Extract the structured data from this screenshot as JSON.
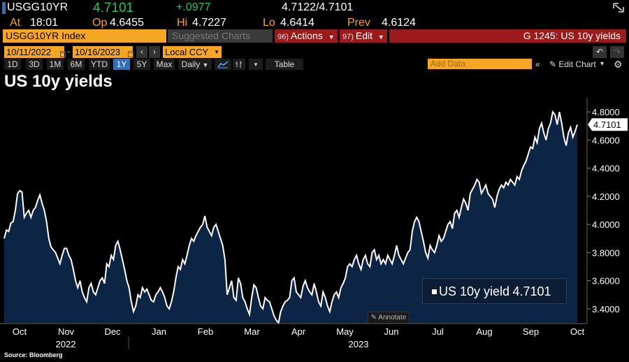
{
  "quote": {
    "ticker": "USGG10YR",
    "last": "4.7101",
    "change": "+.0977",
    "bid_ask": "4.7122/4.7101",
    "at_label": "At",
    "time": "18:01",
    "op_label": "Op",
    "op": "4.6455",
    "hi_label": "Hi",
    "hi": "4.7227",
    "lo_label": "Lo",
    "lo": "4.6414",
    "prev_label": "Prev",
    "prev": "4.6124"
  },
  "command_bar": {
    "security": "USGG10YR Index",
    "suggested": "Suggested Charts",
    "actions_num": "96)",
    "actions": "Actions",
    "edit_num": "97)",
    "edit": "Edit",
    "page_info": "G 1245: US 10y yields"
  },
  "dates": {
    "start": "10/11/2022",
    "end": "10/16/2023",
    "currency": "Local CCY"
  },
  "ranges": {
    "items": [
      "1D",
      "3D",
      "1M",
      "6M",
      "YTD",
      "1Y",
      "5Y",
      "Max"
    ],
    "active": "1Y",
    "frequency": "Daily",
    "table": "Table",
    "add_data_placeholder": "Add Data",
    "edit_chart": "Edit Chart"
  },
  "chart_title": "US 10y yields",
  "annotate_label": "Annotate",
  "source": "Source: Bloomberg",
  "colors": {
    "orange": "#f5a623",
    "green": "#22c55e",
    "area_fill": "#0d2545",
    "line": "#ffffff",
    "action_red": "#9b1b1b"
  },
  "chart_data": {
    "type": "area",
    "title": "US 10y yields",
    "series": [
      {
        "name": "US 10y yield",
        "last_label": "4.7101",
        "values": [
          3.9,
          3.96,
          3.95,
          4.01,
          4.02,
          4.1,
          4.22,
          4.24,
          4.23,
          4.05,
          4.08,
          4.1,
          4.05,
          4.1,
          4.12,
          4.17,
          4.21,
          4.15,
          4.1,
          4.02,
          3.9,
          3.84,
          3.82,
          3.8,
          3.76,
          3.72,
          3.78,
          3.83,
          3.83,
          3.78,
          3.75,
          3.68,
          3.6,
          3.55,
          3.6,
          3.52,
          3.48,
          3.45,
          3.55,
          3.58,
          3.52,
          3.5,
          3.55,
          3.6,
          3.62,
          3.58,
          3.72,
          3.7,
          3.78,
          3.75,
          3.85,
          3.88,
          3.82,
          3.75,
          3.68,
          3.6,
          3.55,
          3.45,
          3.38,
          3.42,
          3.5,
          3.48,
          3.55,
          3.52,
          3.54,
          3.5,
          3.46,
          3.45,
          3.5,
          3.52,
          3.55,
          3.52,
          3.48,
          3.42,
          3.4,
          3.45,
          3.52,
          3.62,
          3.7,
          3.68,
          3.75,
          3.72,
          3.78,
          3.85,
          3.9,
          3.88,
          3.92,
          3.95,
          3.98,
          4.0,
          4.06,
          3.98,
          3.95,
          3.92,
          3.98,
          4.0,
          3.95,
          3.9,
          3.85,
          3.75,
          3.5,
          3.55,
          3.6,
          3.48,
          3.46,
          3.62,
          3.58,
          3.48,
          3.45,
          3.4,
          3.36,
          3.48,
          3.57,
          3.55,
          3.48,
          3.42,
          3.4,
          3.48,
          3.46,
          3.45,
          3.4,
          3.35,
          3.32,
          3.3,
          3.38,
          3.42,
          3.45,
          3.46,
          3.48,
          3.6,
          3.62,
          3.52,
          3.5,
          3.48,
          3.56,
          3.6,
          3.55,
          3.52,
          3.5,
          3.58,
          3.52,
          3.45,
          3.42,
          3.52,
          3.48,
          3.42,
          3.38,
          3.45,
          3.5,
          3.52,
          3.48,
          3.55,
          3.58,
          3.62,
          3.7,
          3.72,
          3.7,
          3.75,
          3.78,
          3.72,
          3.68,
          3.75,
          3.78,
          3.72,
          3.7,
          3.8,
          3.82,
          3.75,
          3.78,
          3.72,
          3.75,
          3.72,
          3.78,
          3.75,
          3.72,
          3.78,
          3.85,
          3.78,
          3.75,
          3.72,
          3.76,
          3.8,
          3.82,
          3.95,
          4.02,
          4.05,
          4.02,
          3.95,
          3.88,
          3.8,
          3.76,
          3.85,
          3.82,
          3.8,
          3.85,
          3.92,
          3.88,
          3.9,
          3.95,
          4.0,
          4.02,
          3.97,
          4.08,
          4.1,
          4.05,
          4.12,
          4.18,
          4.15,
          4.1,
          4.22,
          4.25,
          4.28,
          4.32,
          4.3,
          4.22,
          4.25,
          4.28,
          4.22,
          4.2,
          4.18,
          4.12,
          4.2,
          4.25,
          4.28,
          4.26,
          4.3,
          4.28,
          4.32,
          4.3,
          4.28,
          4.34,
          4.32,
          4.38,
          4.42,
          4.45,
          4.5,
          4.55,
          4.54,
          4.62,
          4.58,
          4.68,
          4.72,
          4.65,
          4.6,
          4.68,
          4.72,
          4.8,
          4.78,
          4.71,
          4.8,
          4.72,
          4.62,
          4.56,
          4.65,
          4.69,
          4.62,
          4.66,
          4.71
        ]
      }
    ],
    "x_tick_labels": [
      "Oct",
      "Nov",
      "Dec",
      "Jan",
      "Feb",
      "Mar",
      "Apr",
      "May",
      "Jun",
      "Jul",
      "Aug",
      "Sep",
      "Oct"
    ],
    "x_year_labels": [
      "2022",
      "2023"
    ],
    "y_tick_labels": [
      "3.4000",
      "3.6000",
      "3.8000",
      "4.0000",
      "4.2000",
      "4.4000",
      "4.6000",
      "4.8000"
    ],
    "ylim": [
      3.3,
      4.9
    ],
    "grid": false,
    "legend": "bottom-right"
  }
}
